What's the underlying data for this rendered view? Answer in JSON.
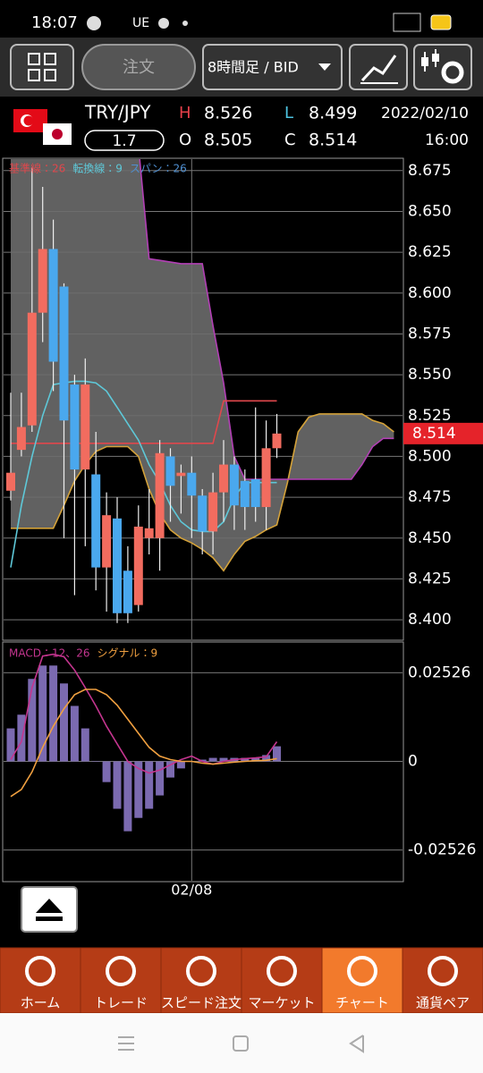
{
  "status_bar": {
    "time": "18:07",
    "carrier": "UE"
  },
  "toolbar": {
    "order_button": "注文",
    "timeframe": "8時間足 / BID"
  },
  "header": {
    "pair": "TRY/JPY",
    "spread": 1.7,
    "high_label": "H",
    "high": 8.526,
    "low_label": "L",
    "low": 8.499,
    "open_label": "O",
    "open": 8.505,
    "close_label": "C",
    "close": 8.514,
    "date": "2022/02/10",
    "time": "16:00"
  },
  "chart_data": [
    {
      "type": "candlestick",
      "categories": [
        null,
        null,
        null,
        null,
        null,
        null,
        null,
        null,
        null,
        null,
        null,
        null,
        null,
        null,
        null,
        null,
        null,
        "02/08",
        null,
        null,
        null,
        null,
        null,
        null,
        null,
        null
      ],
      "open": [
        8.479,
        8.504,
        8.519,
        8.588,
        8.627,
        8.604,
        8.544,
        8.492,
        8.489,
        8.432,
        8.462,
        8.43,
        8.409,
        8.45,
        8.45,
        8.5,
        8.488,
        8.49,
        8.476,
        8.454,
        8.478,
        8.495,
        8.485,
        8.486,
        8.469,
        8.505
      ],
      "high": [
        8.539,
        8.539,
        8.677,
        8.665,
        8.645,
        8.606,
        8.55,
        8.56,
        8.515,
        8.478,
        8.475,
        8.445,
        8.47,
        8.48,
        8.51,
        8.505,
        8.495,
        8.5,
        8.48,
        8.49,
        8.51,
        8.5,
        8.492,
        8.53,
        8.522,
        8.526
      ],
      "low": [
        8.473,
        8.5,
        8.515,
        8.57,
        8.54,
        8.45,
        8.415,
        8.445,
        8.418,
        8.405,
        8.398,
        8.398,
        8.405,
        8.44,
        8.43,
        8.46,
        8.465,
        8.45,
        8.44,
        8.44,
        8.46,
        8.455,
        8.455,
        8.46,
        8.455,
        8.499
      ],
      "close": [
        8.49,
        8.518,
        8.588,
        8.627,
        8.558,
        8.522,
        8.492,
        8.544,
        8.432,
        8.464,
        8.404,
        8.404,
        8.457,
        8.456,
        8.502,
        8.482,
        8.49,
        8.476,
        8.454,
        8.478,
        8.495,
        8.47,
        8.469,
        8.469,
        8.505,
        8.514
      ],
      "up_color": "#f26c5f",
      "down_color": "#4aa8ee",
      "series": [
        {
          "name": "基準線：26",
          "color": "#e0474c",
          "values": [
            8.508,
            8.508,
            8.508,
            8.508,
            8.508,
            8.508,
            8.508,
            8.508,
            8.508,
            8.508,
            8.508,
            8.508,
            8.508,
            8.508,
            8.508,
            8.508,
            8.508,
            8.508,
            8.508,
            8.508,
            8.534,
            8.534,
            8.534,
            8.534,
            8.534,
            8.534
          ]
        },
        {
          "name": "転換線：9",
          "color": "#5ec8d8",
          "values": [
            8.432,
            8.47,
            8.5,
            8.525,
            8.544,
            8.545,
            8.546,
            8.546,
            8.545,
            8.54,
            8.53,
            8.52,
            8.51,
            8.495,
            8.484,
            8.47,
            8.46,
            8.455,
            8.454,
            8.454,
            8.46,
            8.475,
            8.484,
            8.484,
            8.484,
            8.484
          ]
        }
      ],
      "cloud": {
        "name": "スパン：26",
        "label_color": "#4f8fd0",
        "color_a": "#d4a23a",
        "color_b": "#b23fb5",
        "fill": "#6b6b6b",
        "span_a": [
          8.456,
          8.456,
          8.456,
          8.456,
          8.456,
          8.47,
          8.485,
          8.495,
          8.503,
          8.506,
          8.506,
          8.506,
          8.5,
          8.48,
          8.465,
          8.455,
          8.45,
          8.447,
          8.443,
          8.438,
          8.43,
          8.44,
          8.448,
          8.451,
          8.455,
          8.458,
          8.484,
          8.515,
          8.524,
          8.526,
          8.526,
          8.526,
          8.526,
          8.526,
          8.522,
          8.52,
          8.515
        ],
        "span_b": [
          8.7,
          8.7,
          8.7,
          8.7,
          8.7,
          8.7,
          8.7,
          8.7,
          8.7,
          8.7,
          8.7,
          8.7,
          8.69,
          8.621,
          8.62,
          8.619,
          8.618,
          8.618,
          8.618,
          8.58,
          8.545,
          8.5,
          8.486,
          8.486,
          8.486,
          8.486,
          8.486,
          8.486,
          8.486,
          8.486,
          8.486,
          8.486,
          8.486,
          8.495,
          8.506,
          8.511,
          8.511
        ]
      },
      "last_price": 8.514,
      "last_price_color": "#e5232a",
      "ylim": [
        8.388,
        8.682
      ],
      "yticks": [
        {
          "value": 8.4,
          "label": "8.400"
        },
        8.425,
        {
          "value": 8.45,
          "label": "8.450"
        },
        8.475,
        {
          "value": 8.5,
          "label": "8.500"
        },
        8.525,
        {
          "value": 8.55,
          "label": "8.550"
        },
        8.575,
        {
          "value": 8.6,
          "label": "8.600"
        },
        8.625,
        {
          "value": 8.65,
          "label": "8.650"
        },
        8.675
      ],
      "grid": true
    },
    {
      "type": "macd",
      "histogram": {
        "color": "#7b6ab0",
        "values": [
          0.0094,
          0.0133,
          0.0235,
          0.0273,
          0.0273,
          0.0222,
          0.0158,
          0.0094,
          0,
          -0.0059,
          -0.0135,
          -0.0199,
          -0.0161,
          -0.0135,
          -0.0097,
          -0.0046,
          -0.002,
          0,
          0.0005,
          0.001,
          0.001,
          0.001,
          0.001,
          0.001,
          0.0018,
          0.0043
        ]
      },
      "series": [
        {
          "name": "MACD：12、26",
          "color": "#c4358f",
          "values": [
            0.0005,
            0.0056,
            0.021,
            0.03,
            0.0305,
            0.0298,
            0.026,
            0.021,
            0.0158,
            0.01,
            0.005,
            0,
            -0.002,
            -0.0033,
            -0.0025,
            -0.001,
            0.0005,
            0.0015,
            0,
            -0.0008,
            0,
            0.0005,
            0.0008,
            0.001,
            0.0013,
            0.0056
          ]
        },
        {
          "name": "シグナル：9",
          "color": "#f0a040",
          "values": [
            -0.01,
            -0.008,
            -0.003,
            0.004,
            0.01,
            0.015,
            0.019,
            0.0205,
            0.0205,
            0.019,
            0.016,
            0.012,
            0.008,
            0.004,
            0.0015,
            0.0005,
            0,
            0,
            -0.0005,
            -0.0008,
            -0.0005,
            -0.0002,
            0,
            0.0002,
            0.0003,
            0.0008
          ]
        }
      ],
      "ylim": [
        -0.034,
        0.034
      ],
      "yticks": [
        0.02526,
        0,
        -0.02526
      ],
      "grid": true
    }
  ],
  "nav": {
    "items": [
      "ホーム",
      "トレード",
      "スピード注文",
      "マーケット",
      "チャート",
      "通貨ペア"
    ],
    "selected": 4
  }
}
